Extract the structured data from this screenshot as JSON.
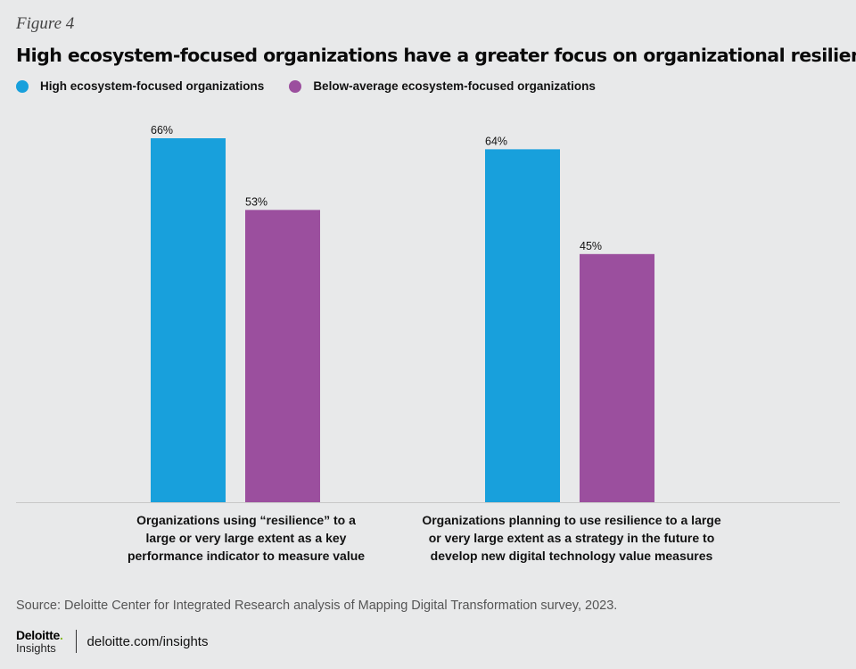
{
  "figure_label": "Figure 4",
  "colors": {
    "high": "#18a0dc",
    "below": "#9b4f9e",
    "background": "#e8e9ea",
    "axis": "#c8c8c8",
    "logo_dot": "#86bc25"
  },
  "chart_data": {
    "type": "bar",
    "title": "High ecosystem-focused organizations have a greater focus on organizational resilience",
    "categories": [
      "Organizations using “resilience” to a large or very large extent as a key performance indicator to measure value",
      "Organizations planning to use resilience to a large or very large extent as a strategy in the future to develop new digital technology value measures"
    ],
    "category_lines": [
      [
        "Organizations using “resilience” to a",
        "large or very large extent as a key",
        "performance indicator to measure value"
      ],
      [
        "Organizations planning to use resilience to a large",
        "or very large extent as a strategy in the future to",
        "develop new digital technology value measures"
      ]
    ],
    "series": [
      {
        "name": "High ecosystem-focused organizations",
        "values": [
          66,
          64
        ],
        "labels": [
          "66%",
          "64%"
        ]
      },
      {
        "name": "Below-average ecosystem-focused organizations",
        "values": [
          53,
          45
        ],
        "labels": [
          "53%",
          "45%"
        ]
      }
    ],
    "ylim": [
      0,
      66
    ],
    "xlabel": "",
    "ylabel": "",
    "legend": "top-left",
    "grid": false
  },
  "source": "Source: Deloitte Center for Integrated Research analysis of Mapping Digital Transformation survey, 2023.",
  "footer": {
    "logo_text": "Deloitte",
    "logo_dot": ".",
    "logo_sub": "Insights",
    "url": "deloitte.com/insights"
  }
}
